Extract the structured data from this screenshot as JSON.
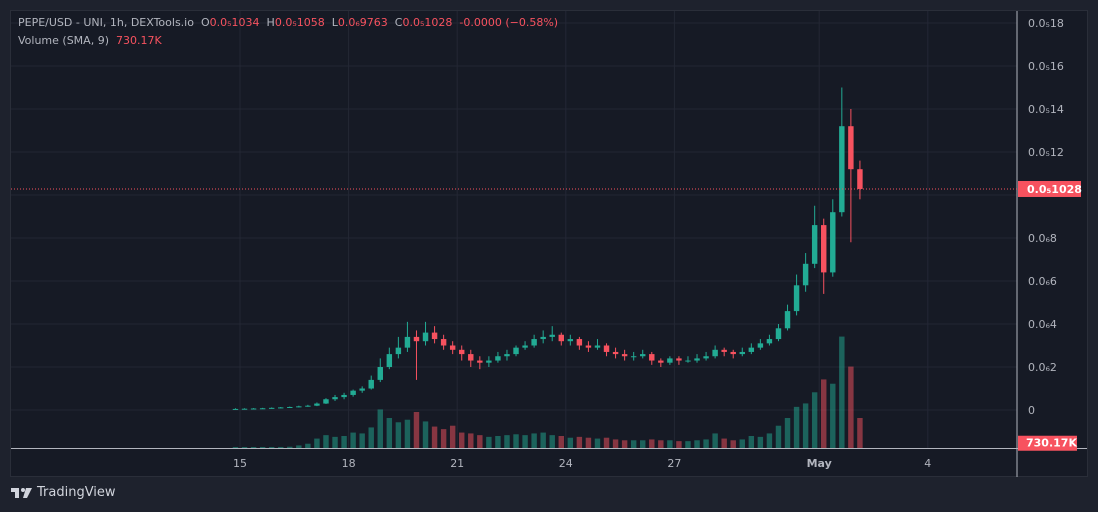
{
  "header": {
    "symbol": "PEPE/USD - UNI, 1h, DEXTools.io",
    "o_label": "O",
    "o": "0.0₅1034",
    "h_label": "H",
    "h": "0.0₅1058",
    "l_label": "L",
    "l": "0.0₆9763",
    "c_label": "C",
    "c": "0.0₅1028",
    "change": "-0.0000 (−0.58%)",
    "volume_label": "Volume (SMA, 9)",
    "volume_value": "730.17K"
  },
  "brand": "TradingView",
  "colors": {
    "up": "#22ab94",
    "down": "#f7525f",
    "bg": "#161a25",
    "grid": "#232734",
    "text": "#b2b5be"
  },
  "chart_data": {
    "type": "candlestick",
    "price_unit": "1e-7 USD",
    "ylim": [
      0,
      18.6
    ],
    "y_ticks": [
      {
        "v": 18,
        "label": "0.0₅18"
      },
      {
        "v": 16,
        "label": "0.0₅16"
      },
      {
        "v": 14,
        "label": "0.0₅14"
      },
      {
        "v": 12,
        "label": "0.0₅12"
      },
      {
        "v": 8,
        "label": "0.0₆8"
      },
      {
        "v": 6,
        "label": "0.0₆6"
      },
      {
        "v": 4,
        "label": "0.0₆4"
      },
      {
        "v": 2,
        "label": "0.0₆2"
      },
      {
        "v": 0,
        "label": "0"
      }
    ],
    "x_ticks": [
      {
        "day": 0,
        "label": "15"
      },
      {
        "day": 3,
        "label": "18"
      },
      {
        "day": 6,
        "label": "21"
      },
      {
        "day": 9,
        "label": "24"
      },
      {
        "day": 12,
        "label": "27"
      },
      {
        "day": 16,
        "label": "May"
      },
      {
        "day": 19,
        "label": "4"
      }
    ],
    "candle_hours": 6,
    "start_day": -0.25,
    "last_price": 10.28,
    "last_price_label": "0.0₅1028",
    "volume_sma_label": "730.17K",
    "volume_sma": 730.17,
    "volume_max": 14000,
    "candles": [
      [
        0.05,
        0.08,
        0.03,
        0.05,
        40
      ],
      [
        0.05,
        0.08,
        0.03,
        0.06,
        50
      ],
      [
        0.06,
        0.09,
        0.04,
        0.07,
        60
      ],
      [
        0.07,
        0.1,
        0.05,
        0.08,
        70
      ],
      [
        0.08,
        0.12,
        0.06,
        0.1,
        90
      ],
      [
        0.1,
        0.14,
        0.08,
        0.12,
        120
      ],
      [
        0.12,
        0.16,
        0.1,
        0.14,
        150
      ],
      [
        0.14,
        0.2,
        0.12,
        0.17,
        300
      ],
      [
        0.17,
        0.24,
        0.15,
        0.2,
        500
      ],
      [
        0.2,
        0.35,
        0.18,
        0.3,
        1100
      ],
      [
        0.3,
        0.55,
        0.28,
        0.5,
        1500
      ],
      [
        0.5,
        0.7,
        0.42,
        0.6,
        1300
      ],
      [
        0.6,
        0.8,
        0.5,
        0.7,
        1400
      ],
      [
        0.7,
        0.95,
        0.62,
        0.9,
        1800
      ],
      [
        0.9,
        1.1,
        0.8,
        1.0,
        1700
      ],
      [
        1.0,
        1.6,
        0.95,
        1.4,
        2400
      ],
      [
        1.4,
        2.4,
        1.3,
        2.0,
        4500
      ],
      [
        2.0,
        2.9,
        1.9,
        2.6,
        3500
      ],
      [
        2.6,
        3.4,
        2.4,
        2.9,
        3000
      ],
      [
        2.9,
        4.1,
        2.7,
        3.4,
        3300
      ],
      [
        3.4,
        3.7,
        1.4,
        3.2,
        4200
      ],
      [
        3.2,
        4.1,
        3.0,
        3.6,
        3100
      ],
      [
        3.6,
        3.9,
        3.1,
        3.3,
        2500
      ],
      [
        3.3,
        3.5,
        2.8,
        3.0,
        2200
      ],
      [
        3.0,
        3.2,
        2.6,
        2.8,
        2600
      ],
      [
        2.8,
        3.0,
        2.3,
        2.6,
        1800
      ],
      [
        2.6,
        2.8,
        2.0,
        2.3,
        1700
      ],
      [
        2.3,
        2.5,
        1.9,
        2.2,
        1500
      ],
      [
        2.2,
        2.5,
        2.0,
        2.3,
        1300
      ],
      [
        2.3,
        2.7,
        2.2,
        2.5,
        1400
      ],
      [
        2.5,
        2.8,
        2.3,
        2.6,
        1500
      ],
      [
        2.6,
        3.0,
        2.5,
        2.9,
        1600
      ],
      [
        2.9,
        3.2,
        2.8,
        3.0,
        1500
      ],
      [
        3.0,
        3.5,
        2.9,
        3.3,
        1700
      ],
      [
        3.3,
        3.7,
        3.1,
        3.4,
        1800
      ],
      [
        3.4,
        3.9,
        3.2,
        3.5,
        1500
      ],
      [
        3.5,
        3.6,
        3.0,
        3.2,
        1400
      ],
      [
        3.2,
        3.5,
        3.0,
        3.3,
        1200
      ],
      [
        3.3,
        3.4,
        2.8,
        3.0,
        1300
      ],
      [
        3.0,
        3.2,
        2.7,
        2.9,
        1200
      ],
      [
        2.9,
        3.3,
        2.8,
        3.0,
        1100
      ],
      [
        3.0,
        3.1,
        2.5,
        2.7,
        1200
      ],
      [
        2.7,
        2.9,
        2.4,
        2.6,
        1000
      ],
      [
        2.6,
        2.8,
        2.3,
        2.5,
        900
      ],
      [
        2.5,
        2.7,
        2.3,
        2.5,
        900
      ],
      [
        2.5,
        2.8,
        2.4,
        2.6,
        900
      ],
      [
        2.6,
        2.7,
        2.1,
        2.3,
        1000
      ],
      [
        2.3,
        2.4,
        2.0,
        2.2,
        900
      ],
      [
        2.2,
        2.5,
        2.1,
        2.4,
        900
      ],
      [
        2.4,
        2.5,
        2.1,
        2.3,
        800
      ],
      [
        2.3,
        2.5,
        2.2,
        2.3,
        800
      ],
      [
        2.3,
        2.6,
        2.2,
        2.4,
        900
      ],
      [
        2.4,
        2.7,
        2.3,
        2.5,
        1000
      ],
      [
        2.5,
        3.0,
        2.4,
        2.8,
        1700
      ],
      [
        2.8,
        2.9,
        2.5,
        2.7,
        1100
      ],
      [
        2.7,
        2.8,
        2.4,
        2.6,
        900
      ],
      [
        2.6,
        2.9,
        2.5,
        2.7,
        1000
      ],
      [
        2.7,
        3.1,
        2.6,
        2.9,
        1400
      ],
      [
        2.9,
        3.3,
        2.8,
        3.1,
        1300
      ],
      [
        3.1,
        3.5,
        3.0,
        3.3,
        1700
      ],
      [
        3.3,
        4.0,
        3.2,
        3.8,
        2600
      ],
      [
        3.8,
        4.9,
        3.7,
        4.6,
        3500
      ],
      [
        4.6,
        6.3,
        4.4,
        5.8,
        4800
      ],
      [
        5.8,
        7.3,
        5.5,
        6.8,
        5200
      ],
      [
        6.8,
        9.5,
        6.6,
        8.6,
        6500
      ],
      [
        8.6,
        8.9,
        5.4,
        6.4,
        8000
      ],
      [
        6.4,
        9.8,
        6.2,
        9.2,
        7500
      ],
      [
        9.2,
        15.0,
        9.0,
        13.2,
        13000
      ],
      [
        13.2,
        14.0,
        7.8,
        11.2,
        9500
      ],
      [
        11.2,
        11.6,
        9.8,
        10.28,
        3500
      ]
    ]
  }
}
